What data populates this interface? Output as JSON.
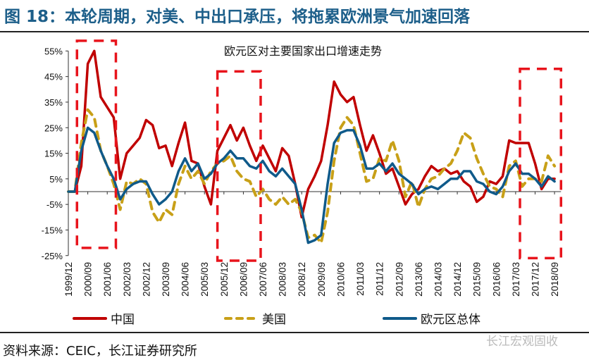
{
  "header": {
    "title": "图 18：本轮周期，对美、中出口承压，将拖累欧洲景气加速回落"
  },
  "footer": {
    "source": "资料来源：CEIC，长江证券研究所",
    "watermark": "长江宏观固收"
  },
  "chart_data": {
    "type": "line",
    "title": "欧元区对主要国家出口增速走势",
    "xlabel": "",
    "ylabel": "",
    "ylim": [
      -25,
      55
    ],
    "yticks": [
      "55%",
      "45%",
      "35%",
      "25%",
      "15%",
      "5%",
      "-5%",
      "-15%",
      "-25%"
    ],
    "ytick_values": [
      55,
      45,
      35,
      25,
      15,
      5,
      -5,
      -15,
      -25
    ],
    "xtick_labels": [
      "1999/12",
      "2000/09",
      "2001/06",
      "2002/03",
      "2002/12",
      "2003/09",
      "2004/06",
      "2005/03",
      "2005/12",
      "2006/09",
      "2007/06",
      "2008/03",
      "2008/12",
      "2009/09",
      "2010/06",
      "2011/03",
      "2011/12",
      "2012/09",
      "2013/06",
      "2014/03",
      "2014/12",
      "2015/09",
      "2016/06",
      "2017/03",
      "2017/12",
      "2018/09"
    ],
    "grid": false,
    "legend": "bottom",
    "x": [
      "1999/12",
      "2000/03",
      "2000/06",
      "2000/09",
      "2000/12",
      "2001/03",
      "2001/06",
      "2001/09",
      "2001/12",
      "2002/03",
      "2002/06",
      "2002/09",
      "2002/12",
      "2003/03",
      "2003/06",
      "2003/09",
      "2003/12",
      "2004/03",
      "2004/06",
      "2004/09",
      "2004/12",
      "2005/03",
      "2005/06",
      "2005/09",
      "2005/12",
      "2006/03",
      "2006/06",
      "2006/09",
      "2006/12",
      "2007/03",
      "2007/06",
      "2007/09",
      "2007/12",
      "2008/03",
      "2008/06",
      "2008/09",
      "2008/12",
      "2009/03",
      "2009/06",
      "2009/09",
      "2009/12",
      "2010/03",
      "2010/06",
      "2010/09",
      "2010/12",
      "2011/03",
      "2011/06",
      "2011/09",
      "2011/12",
      "2012/03",
      "2012/06",
      "2012/09",
      "2012/12",
      "2013/03",
      "2013/06",
      "2013/09",
      "2013/12",
      "2014/03",
      "2014/06",
      "2014/09",
      "2014/12",
      "2015/03",
      "2015/06",
      "2015/09",
      "2015/12",
      "2016/03",
      "2016/06",
      "2016/09",
      "2016/12",
      "2017/03",
      "2017/06",
      "2017/09",
      "2017/12",
      "2018/03",
      "2018/06",
      "2018/09"
    ],
    "series": [
      {
        "name": "中国",
        "color": "#c00000",
        "style": "solid",
        "values": [
          0,
          0,
          10,
          50,
          55,
          37,
          33,
          29,
          5,
          15,
          18,
          21,
          28,
          26,
          17,
          18,
          10,
          19,
          27,
          12,
          11,
          2,
          -5,
          16,
          21,
          26,
          20,
          25,
          18,
          12,
          18,
          13,
          8,
          17,
          14,
          3,
          -10,
          1,
          6,
          12,
          26,
          43,
          38,
          35,
          37,
          26,
          16,
          22,
          15,
          7,
          9,
          2,
          -5,
          -1,
          1,
          6,
          10,
          8,
          9,
          7,
          8,
          4,
          2,
          -4,
          -2,
          4,
          3,
          6,
          20,
          19,
          19,
          19,
          11,
          1,
          5,
          5
        ]
      },
      {
        "name": "美国",
        "color": "#c8a018",
        "style": "dashed",
        "values": [
          0,
          0,
          19,
          32,
          29,
          16,
          10,
          3,
          -7,
          4,
          3,
          5,
          3,
          -8,
          -12,
          -7,
          -9,
          3,
          10,
          5,
          8,
          3,
          8,
          11,
          12,
          14,
          8,
          5,
          4,
          -2,
          1,
          -3,
          -5,
          -2,
          -5,
          -3,
          -8,
          -18,
          -17,
          -20,
          -8,
          12,
          25,
          29,
          26,
          15,
          4,
          5,
          13,
          12,
          20,
          12,
          -2,
          4,
          -6,
          1,
          5,
          6,
          9,
          11,
          16,
          23,
          21,
          13,
          7,
          2,
          1,
          -2,
          10,
          12,
          2,
          5,
          5,
          4,
          14,
          10
        ]
      },
      {
        "name": "欧元区总体",
        "color": "#0f5a8a",
        "style": "solid",
        "values": [
          0,
          0,
          16,
          25,
          23,
          16,
          10,
          5,
          -3,
          1,
          3,
          4,
          4,
          -1,
          -5,
          -3,
          0,
          8,
          13,
          8,
          11,
          5,
          7,
          11,
          13,
          16,
          13,
          13,
          10,
          9,
          12,
          8,
          6,
          9,
          6,
          3,
          -7,
          -20,
          -19,
          -17,
          3,
          19,
          23,
          24,
          24,
          18,
          9,
          9,
          11,
          8,
          11,
          7,
          5,
          3,
          -1,
          1,
          2,
          1,
          3,
          5,
          5,
          8,
          8,
          4,
          3,
          0,
          -1,
          2,
          8,
          11,
          7,
          7,
          5,
          2,
          6,
          4
        ]
      }
    ],
    "annotations": [
      {
        "shape": "dashed-box",
        "color": "#e8141c",
        "x_range": [
          "2000/04",
          "2001/10"
        ],
        "y_range": [
          -22,
          59
        ]
      },
      {
        "shape": "dashed-box",
        "color": "#e8141c",
        "x_range": [
          "2005/09",
          "2007/05"
        ],
        "y_range": [
          -27,
          47
        ]
      },
      {
        "shape": "dashed-box",
        "color": "#e8141c",
        "x_range": [
          "2017/05",
          "2018/12"
        ],
        "y_range": [
          -26,
          48
        ]
      }
    ]
  }
}
